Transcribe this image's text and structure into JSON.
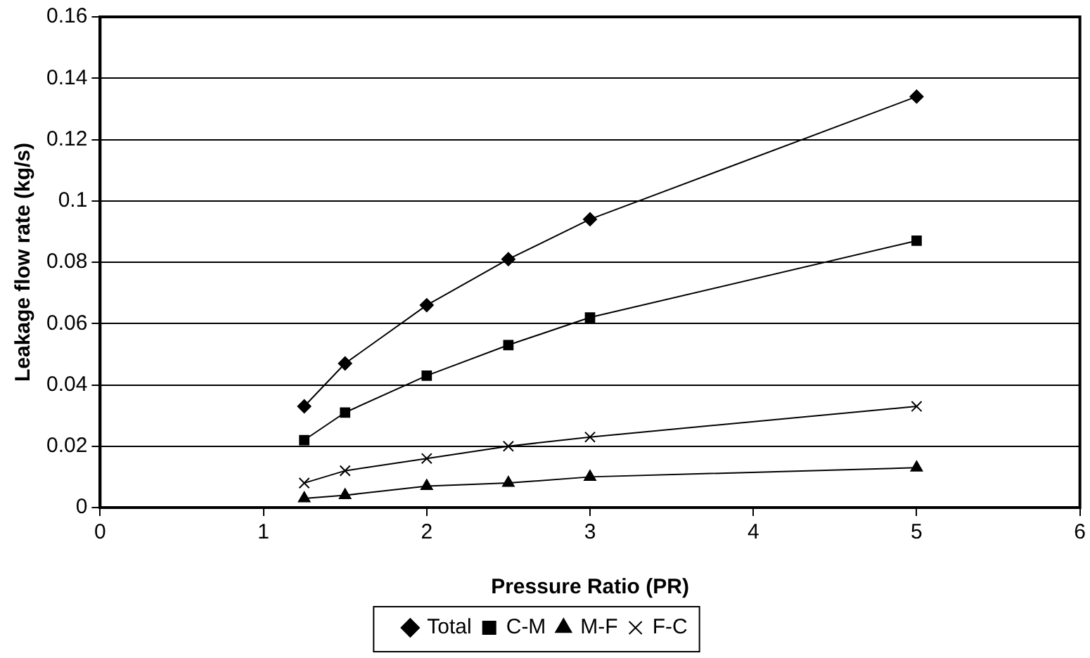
{
  "chart_data": {
    "type": "line",
    "xlabel": "Pressure Ratio (PR)",
    "ylabel": "Leakage flow rate (kg/s)",
    "x": [
      1.25,
      1.5,
      2,
      2.5,
      3,
      5
    ],
    "series": [
      {
        "name": "Total",
        "color": "#000000",
        "marker": "diamond",
        "values": [
          0.033,
          0.047,
          0.066,
          0.081,
          0.094,
          0.134
        ]
      },
      {
        "name": "C-M",
        "color": "#000000",
        "marker": "square",
        "values": [
          0.022,
          0.031,
          0.043,
          0.053,
          0.062,
          0.087
        ]
      },
      {
        "name": "M-F",
        "color": "#000000",
        "marker": "triangle",
        "values": [
          0.003,
          0.004,
          0.007,
          0.008,
          0.01,
          0.013
        ]
      },
      {
        "name": "F-C",
        "color": "#000000",
        "marker": "cross",
        "values": [
          0.008,
          0.012,
          0.016,
          0.02,
          0.023,
          0.033
        ]
      }
    ],
    "xlim": [
      0,
      6
    ],
    "xticks": [
      0,
      1,
      2,
      3,
      4,
      5,
      6
    ],
    "ylim": [
      0,
      0.16
    ],
    "yticks": [
      0,
      0.02,
      0.04,
      0.06,
      0.08,
      0.1,
      0.12,
      0.14,
      0.16
    ],
    "grid": "y",
    "legend": "bottom",
    "line_style": "solid"
  }
}
